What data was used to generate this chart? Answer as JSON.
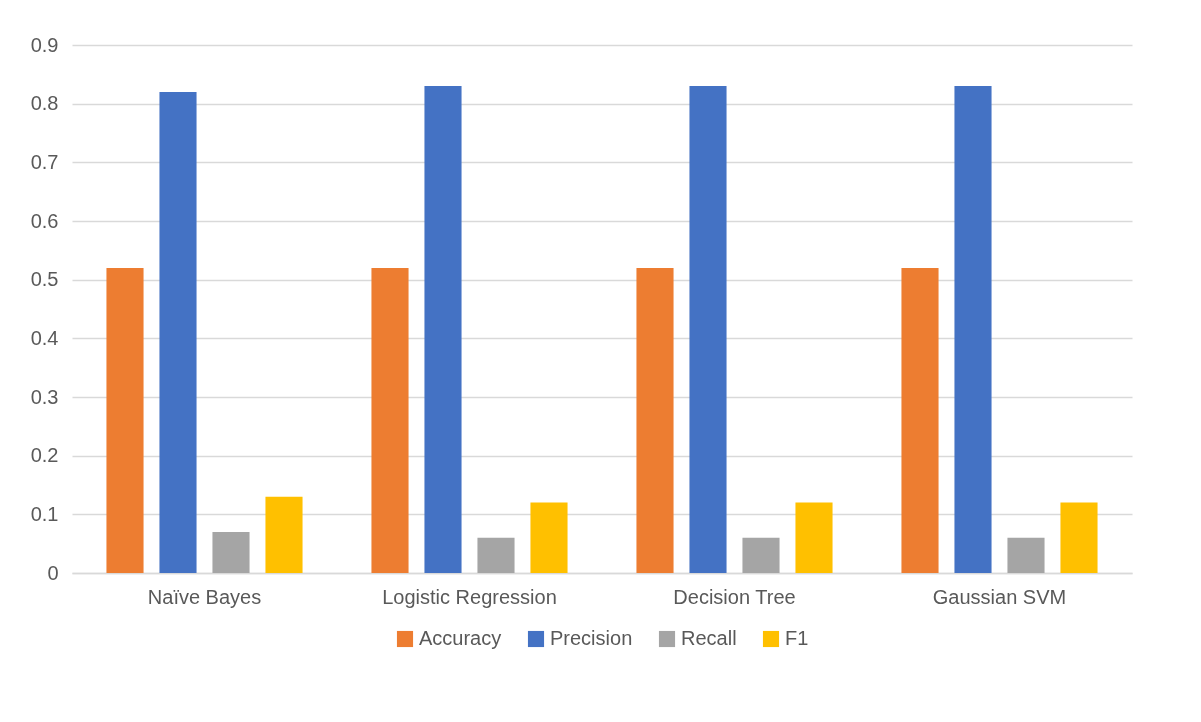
{
  "chart_data": {
    "type": "bar",
    "categories": [
      "Naïve Bayes",
      "Logistic Regression",
      "Decision Tree",
      "Gaussian SVM"
    ],
    "series": [
      {
        "name": "Accuracy",
        "color": "#ed7d31",
        "values": [
          0.52,
          0.52,
          0.52,
          0.52
        ]
      },
      {
        "name": "Precision",
        "color": "#4472c4",
        "values": [
          0.82,
          0.83,
          0.83,
          0.83
        ]
      },
      {
        "name": "Recall",
        "color": "#a5a5a5",
        "values": [
          0.07,
          0.06,
          0.06,
          0.06
        ]
      },
      {
        "name": "F1",
        "color": "#ffc000",
        "values": [
          0.13,
          0.12,
          0.12,
          0.12
        ]
      }
    ],
    "ylim": [
      0,
      0.9
    ],
    "yticks": [
      0,
      0.1,
      0.2,
      0.3,
      0.4,
      0.5,
      0.6,
      0.7,
      0.8,
      0.9
    ],
    "grid": "y",
    "legend": "bottom"
  }
}
